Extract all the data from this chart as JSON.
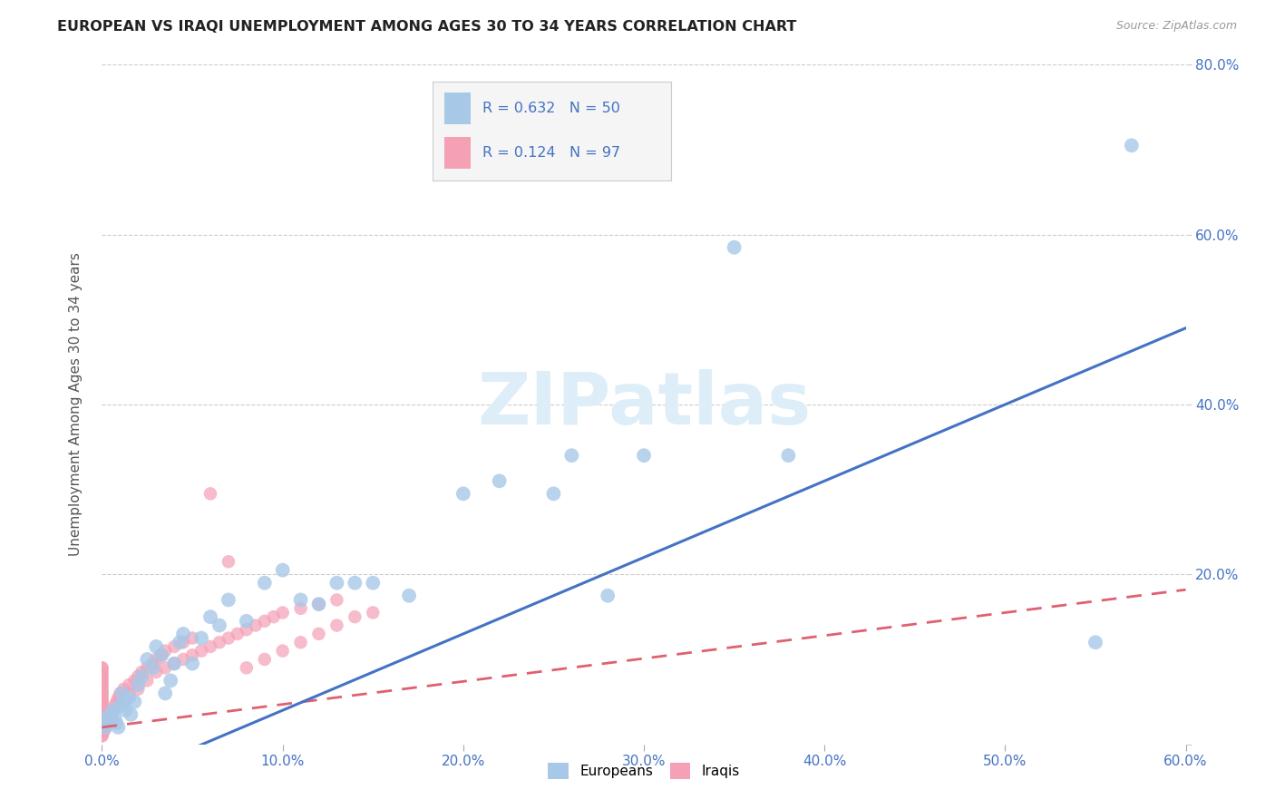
{
  "title": "EUROPEAN VS IRAQI UNEMPLOYMENT AMONG AGES 30 TO 34 YEARS CORRELATION CHART",
  "source": "Source: ZipAtlas.com",
  "ylabel": "Unemployment Among Ages 30 to 34 years",
  "xlim": [
    0,
    0.6
  ],
  "ylim": [
    0,
    0.8
  ],
  "xtick_vals": [
    0.0,
    0.1,
    0.2,
    0.3,
    0.4,
    0.5,
    0.6
  ],
  "ytick_vals": [
    0.0,
    0.2,
    0.4,
    0.6,
    0.8
  ],
  "xtick_labels": [
    "0.0%",
    "10.0%",
    "20.0%",
    "30.0%",
    "40.0%",
    "50.0%",
    "60.0%"
  ],
  "ytick_labels": [
    "",
    "20.0%",
    "40.0%",
    "60.0%",
    "80.0%"
  ],
  "legend_R_european": "0.632",
  "legend_N_european": "50",
  "legend_R_iraqi": "0.124",
  "legend_N_iraqi": "97",
  "european_color": "#a8c8e8",
  "iraqi_color": "#f4a0b5",
  "european_line_color": "#4472c4",
  "iraqi_line_color": "#e06070",
  "legend_text_color": "#4472c4",
  "watermark_color": "#ddeef8",
  "background_color": "#ffffff",
  "grid_color": "#cccccc",
  "title_color": "#222222",
  "axis_color": "#4472c4",
  "eu_line_intercept": -0.05,
  "eu_line_slope": 0.9,
  "iq_line_intercept": 0.02,
  "iq_line_slope": 0.27,
  "european_scatter_x": [
    0.001,
    0.002,
    0.003,
    0.005,
    0.006,
    0.007,
    0.008,
    0.009,
    0.01,
    0.011,
    0.012,
    0.013,
    0.015,
    0.016,
    0.018,
    0.02,
    0.022,
    0.025,
    0.028,
    0.03,
    0.033,
    0.035,
    0.038,
    0.04,
    0.043,
    0.045,
    0.05,
    0.055,
    0.06,
    0.065,
    0.07,
    0.08,
    0.09,
    0.1,
    0.11,
    0.12,
    0.13,
    0.14,
    0.15,
    0.17,
    0.2,
    0.22,
    0.25,
    0.26,
    0.28,
    0.3,
    0.35,
    0.38,
    0.55,
    0.57
  ],
  "european_scatter_y": [
    0.03,
    0.02,
    0.025,
    0.035,
    0.04,
    0.03,
    0.025,
    0.02,
    0.045,
    0.06,
    0.05,
    0.04,
    0.055,
    0.035,
    0.05,
    0.07,
    0.08,
    0.1,
    0.09,
    0.115,
    0.105,
    0.06,
    0.075,
    0.095,
    0.12,
    0.13,
    0.095,
    0.125,
    0.15,
    0.14,
    0.17,
    0.145,
    0.19,
    0.205,
    0.17,
    0.165,
    0.19,
    0.19,
    0.19,
    0.175,
    0.295,
    0.31,
    0.295,
    0.34,
    0.175,
    0.34,
    0.585,
    0.34,
    0.12,
    0.705
  ],
  "iraqi_scatter_x": [
    0.0,
    0.0,
    0.0,
    0.0,
    0.0,
    0.0,
    0.0,
    0.0,
    0.0,
    0.0,
    0.0,
    0.0,
    0.0,
    0.0,
    0.0,
    0.0,
    0.0,
    0.0,
    0.0,
    0.0,
    0.0,
    0.0,
    0.0,
    0.0,
    0.0,
    0.0,
    0.0,
    0.0,
    0.0,
    0.0,
    0.0,
    0.0,
    0.0,
    0.0,
    0.0,
    0.0,
    0.0,
    0.0,
    0.0,
    0.0,
    0.0,
    0.0,
    0.001,
    0.002,
    0.003,
    0.004,
    0.005,
    0.006,
    0.007,
    0.008,
    0.009,
    0.01,
    0.012,
    0.015,
    0.018,
    0.02,
    0.022,
    0.025,
    0.028,
    0.03,
    0.033,
    0.035,
    0.04,
    0.045,
    0.05,
    0.06,
    0.07,
    0.08,
    0.09,
    0.1,
    0.11,
    0.12,
    0.13,
    0.14,
    0.15,
    0.01,
    0.015,
    0.02,
    0.025,
    0.03,
    0.035,
    0.04,
    0.045,
    0.05,
    0.055,
    0.06,
    0.065,
    0.07,
    0.075,
    0.08,
    0.085,
    0.09,
    0.095,
    0.1,
    0.11,
    0.12,
    0.13
  ],
  "iraqi_scatter_y": [
    0.01,
    0.01,
    0.015,
    0.015,
    0.02,
    0.02,
    0.02,
    0.025,
    0.025,
    0.025,
    0.03,
    0.03,
    0.03,
    0.035,
    0.035,
    0.035,
    0.04,
    0.04,
    0.04,
    0.045,
    0.045,
    0.045,
    0.05,
    0.05,
    0.05,
    0.055,
    0.055,
    0.06,
    0.06,
    0.06,
    0.065,
    0.065,
    0.07,
    0.07,
    0.075,
    0.075,
    0.08,
    0.08,
    0.085,
    0.085,
    0.09,
    0.09,
    0.015,
    0.02,
    0.025,
    0.03,
    0.035,
    0.04,
    0.045,
    0.05,
    0.055,
    0.06,
    0.065,
    0.07,
    0.075,
    0.08,
    0.085,
    0.09,
    0.095,
    0.1,
    0.105,
    0.11,
    0.115,
    0.12,
    0.125,
    0.295,
    0.215,
    0.09,
    0.1,
    0.11,
    0.12,
    0.13,
    0.14,
    0.15,
    0.155,
    0.055,
    0.06,
    0.065,
    0.075,
    0.085,
    0.09,
    0.095,
    0.1,
    0.105,
    0.11,
    0.115,
    0.12,
    0.125,
    0.13,
    0.135,
    0.14,
    0.145,
    0.15,
    0.155,
    0.16,
    0.165,
    0.17
  ]
}
